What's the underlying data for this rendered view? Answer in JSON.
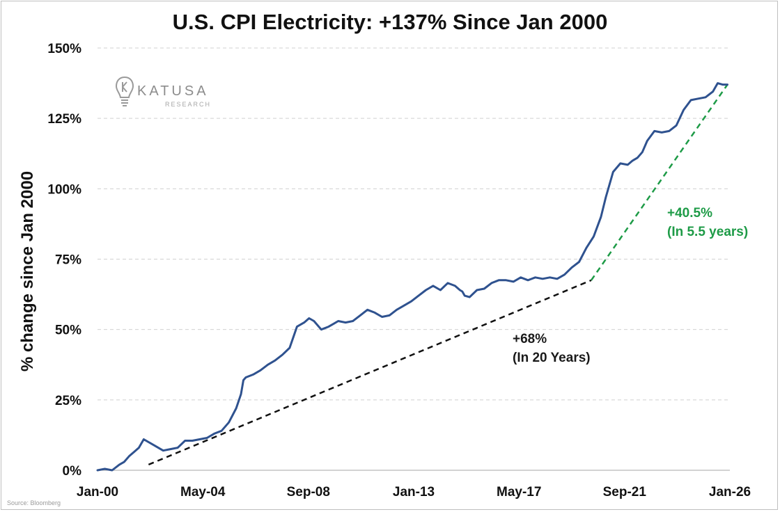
{
  "title": "U.S. CPI Electricity: +137% Since Jan 2000",
  "source": "Source: Bloomberg",
  "logo": {
    "word": "KATUSA",
    "sub": "RESEARCH",
    "icon": "lightbulb-k-icon"
  },
  "colors": {
    "line": "#2f528f",
    "trend_black": "#111111",
    "trend_green": "#1e9b47",
    "grid": "#d0d0d0"
  },
  "chart_data": {
    "type": "line",
    "title": "U.S. CPI Electricity: +137% Since Jan 2000",
    "xlabel": "",
    "ylabel": "% change since Jan 2000",
    "ylim": [
      0,
      150
    ],
    "xlim": [
      2000.0,
      2026.0
    ],
    "grid": true,
    "y_ticks": [
      0,
      25,
      50,
      75,
      100,
      125,
      150
    ],
    "y_tick_labels": [
      "0%",
      "25%",
      "50%",
      "75%",
      "100%",
      "125%",
      "150%"
    ],
    "x_ticks": [
      2000.0,
      2004.33,
      2008.67,
      2013.0,
      2017.33,
      2021.67,
      2026.0
    ],
    "x_tick_labels": [
      "Jan-00",
      "May-04",
      "Sep-08",
      "Jan-13",
      "May-17",
      "Sep-21",
      "Jan-26"
    ],
    "series": [
      {
        "x": [
          2000.0,
          2000.3,
          2000.6,
          2000.9,
          2001.1,
          2001.3,
          2001.5,
          2001.7,
          2001.9,
          2002.1,
          2002.4,
          2002.7,
          2003.0,
          2003.3,
          2003.6,
          2003.9,
          2004.2,
          2004.5,
          2004.8,
          2005.1,
          2005.4,
          2005.7,
          2005.9,
          2006.0,
          2006.1,
          2006.4,
          2006.7,
          2007.0,
          2007.3,
          2007.6,
          2007.9,
          2008.2,
          2008.5,
          2008.7,
          2008.9,
          2009.2,
          2009.5,
          2009.7,
          2009.9,
          2010.2,
          2010.5,
          2010.8,
          2011.1,
          2011.4,
          2011.7,
          2012.0,
          2012.3,
          2012.6,
          2012.9,
          2013.2,
          2013.5,
          2013.8,
          2014.1,
          2014.4,
          2014.7,
          2014.9,
          2015.0,
          2015.1,
          2015.3,
          2015.6,
          2015.9,
          2016.2,
          2016.5,
          2016.8,
          2017.1,
          2017.4,
          2017.7,
          2018.0,
          2018.3,
          2018.6,
          2018.9,
          2019.2,
          2019.5,
          2019.8,
          2020.1,
          2020.4,
          2020.7,
          2020.9,
          2021.2,
          2021.5,
          2021.8,
          2022.0,
          2022.2,
          2022.4,
          2022.6,
          2022.9,
          2023.2,
          2023.5,
          2023.8,
          2024.1,
          2024.4,
          2024.7,
          2025.0,
          2025.3,
          2025.5,
          2025.7,
          2025.9
        ],
        "y": [
          0,
          0.5,
          0,
          2,
          3,
          5,
          6.5,
          8,
          11,
          10,
          8.5,
          7,
          7.5,
          8,
          10.5,
          10.5,
          11,
          11.5,
          13,
          14,
          17,
          22,
          27,
          32,
          33,
          34,
          35.5,
          37.5,
          39,
          41,
          43.5,
          51,
          52.5,
          54,
          53,
          50,
          51,
          52,
          53,
          52.5,
          53,
          55,
          57,
          56,
          54.5,
          55,
          57,
          58.5,
          60,
          62,
          64,
          65.5,
          64,
          66.5,
          65.5,
          64,
          63.5,
          62,
          61.5,
          64,
          64.5,
          66.5,
          67.5,
          67.5,
          67,
          68.5,
          67.5,
          68.5,
          68,
          68.5,
          68,
          69.5,
          72,
          74,
          79,
          83,
          90,
          97,
          106,
          109,
          108.5,
          110,
          111,
          113,
          117,
          120.5,
          120,
          120.5,
          122.5,
          128,
          131.5,
          132,
          132.5,
          134.5,
          137.5,
          137,
          137
        ]
      }
    ],
    "trendlines": [
      {
        "from": [
          2002.1,
          2.0
        ],
        "to": [
          2020.3,
          67.5
        ],
        "label": [
          "+68%",
          "(In 20 Years)"
        ]
      },
      {
        "from": [
          2020.3,
          67.5
        ],
        "to": [
          2025.9,
          137.0
        ],
        "label": [
          "+40.5%",
          "(In 5.5 years)"
        ]
      }
    ]
  }
}
